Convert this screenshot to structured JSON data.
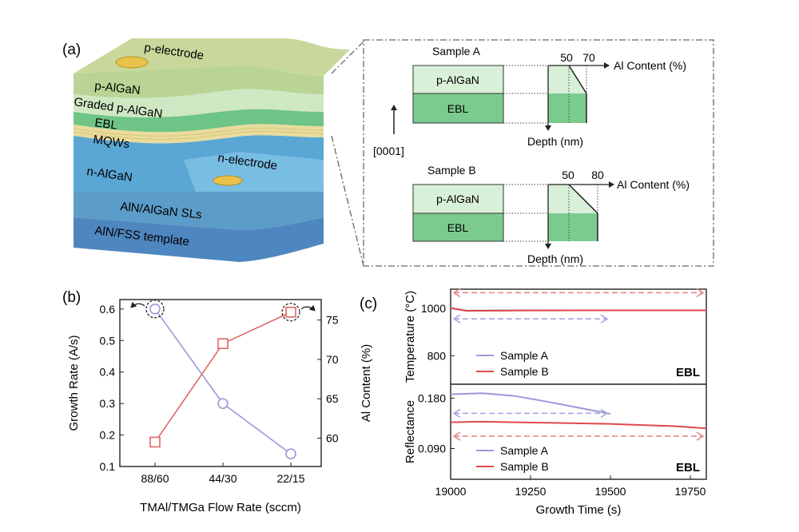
{
  "panel_labels": {
    "a": "(a)",
    "b": "(b)",
    "c": "(c)"
  },
  "device": {
    "layers": {
      "p_electrode": "p-electrode",
      "p_algan": "p-AlGaN",
      "graded": "Graded p-AlGaN",
      "ebl": "EBL",
      "mqws": "MQWs",
      "n_algan": "n-AlGaN",
      "n_electrode": "n-electrode",
      "sls": "AlN/AlGaN SLs",
      "template": "AlN/FSS template"
    },
    "colors": {
      "p_algan": "#b9d495",
      "graded": "#cfe8c4",
      "ebl": "#6fc487",
      "mqws": "#e9dc9c",
      "n_algan": "#5aa6d4",
      "sls": "#5c9cc8",
      "template": "#4e86bf",
      "electrode": "#e8c24a"
    }
  },
  "inset": {
    "direction": "[0001]",
    "sample_a": {
      "title": "Sample A",
      "ticks": [
        "50",
        "70"
      ],
      "axis": "Al Content (%)",
      "depth": "Depth (nm)",
      "layer_top": "p-AlGaN",
      "layer_bottom": "EBL"
    },
    "sample_b": {
      "title": "Sample B",
      "ticks": [
        "50",
        "80"
      ],
      "axis": "Al Content (%)",
      "depth": "Depth (nm)",
      "layer_top": "p-AlGaN",
      "layer_bottom": "EBL"
    }
  },
  "chart_data": [
    {
      "type": "line",
      "panel": "(b)",
      "title": "",
      "xlabel": "TMAl/TMGa Flow Rate (sccm)",
      "categories": [
        "88/60",
        "44/30",
        "22/15"
      ],
      "ylabel": "Growth Rate (A/s)",
      "ylim": [
        0.1,
        0.63
      ],
      "yticks": [
        "0.1",
        "0.2",
        "0.3",
        "0.4",
        "0.5",
        "0.6"
      ],
      "y2label": "Al Content (%)",
      "y2lim": [
        56.4,
        77.6
      ],
      "y2ticks": [
        "60",
        "65",
        "70",
        "75"
      ],
      "grid": false,
      "series": [
        {
          "axis": "left",
          "color": "#9a98d8",
          "marker": "circle",
          "values": [
            0.6,
            0.3,
            0.14
          ]
        },
        {
          "axis": "right",
          "color": "#e06666",
          "marker": "square",
          "values": [
            59.5,
            72,
            76
          ]
        }
      ]
    },
    {
      "type": "line",
      "panel": "(c)",
      "xlabel": "Growth Time (s)",
      "xlim": [
        19000,
        19800
      ],
      "xticks": [
        "19000",
        "19250",
        "19500",
        "19750"
      ],
      "subplots": [
        {
          "ylabel": "Temperature (°C)",
          "ylim": [
            680,
            1080
          ],
          "yticks": [
            "800",
            "1000"
          ],
          "tag": "EBL",
          "legend": [
            "Sample A",
            "Sample B"
          ],
          "series": [
            {
              "name": "Sample A",
              "color": "#9a98d8",
              "x": [
                19000,
                19050,
                19150,
                19300,
                19500
              ],
              "y": [
                1000,
                990,
                991,
                991,
                991
              ]
            },
            {
              "name": "Sample B",
              "color": "#e04848",
              "x": [
                19000,
                19050,
                19200,
                19400,
                19600,
                19800
              ],
              "y": [
                1000,
                989,
                990,
                991,
                991,
                991
              ]
            }
          ]
        },
        {
          "ylabel": "Reflectance",
          "ylim": [
            0.035,
            0.205
          ],
          "yticks": [
            "0.090",
            "0.180"
          ],
          "tag": "EBL",
          "legend": [
            "Sample A",
            "Sample B"
          ],
          "series": [
            {
              "name": "Sample A",
              "color": "#9a98d8",
              "x": [
                19000,
                19100,
                19200,
                19300,
                19400,
                19500
              ],
              "y": [
                0.187,
                0.189,
                0.184,
                0.174,
                0.163,
                0.152
              ]
            },
            {
              "name": "Sample B",
              "color": "#e04848",
              "x": [
                19000,
                19100,
                19300,
                19500,
                19700,
                19800
              ],
              "y": [
                0.137,
                0.138,
                0.136,
                0.134,
                0.13,
                0.126
              ]
            }
          ]
        }
      ]
    }
  ]
}
